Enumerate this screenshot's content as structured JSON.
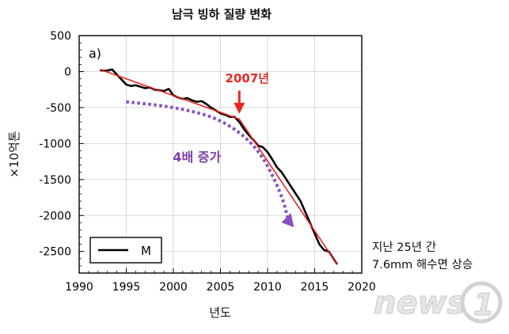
{
  "chart_data": {
    "type": "line",
    "title": "남극 빙하 질량 변화",
    "panel_label": "a)",
    "xlabel": "년도",
    "ylabel": "×10억톤",
    "xlim": [
      1990,
      2020
    ],
    "ylim": [
      -2800,
      500
    ],
    "x_ticks": [
      1990,
      1995,
      2000,
      2005,
      2010,
      2015,
      2020
    ],
    "y_ticks": [
      500,
      0,
      -500,
      -1000,
      -1500,
      -2000,
      -2500
    ],
    "grid": true,
    "legend": {
      "position": "bottom-left",
      "entries": [
        "M"
      ]
    },
    "series": [
      {
        "name": "M",
        "color": "#000000",
        "x": [
          1992.2,
          1992.8,
          1993.5,
          1994.0,
          1994.5,
          1995.0,
          1995.5,
          1996.0,
          1996.5,
          1997.0,
          1997.5,
          1998.0,
          1998.5,
          1999.0,
          1999.5,
          2000.0,
          2000.5,
          2001.0,
          2001.5,
          2002.0,
          2002.5,
          2003.0,
          2003.5,
          2004.0,
          2004.5,
          2005.0,
          2005.5,
          2006.0,
          2006.5,
          2007.0,
          2007.5,
          2008.0,
          2008.5,
          2009.0,
          2009.5,
          2010.0,
          2010.5,
          2011.0,
          2011.5,
          2012.0,
          2012.5,
          2013.0,
          2013.5,
          2014.0,
          2014.5,
          2015.0,
          2015.5,
          2016.0,
          2016.5,
          2017.0,
          2017.4
        ],
        "y": [
          20,
          10,
          30,
          -40,
          -110,
          -180,
          -200,
          -190,
          -210,
          -230,
          -220,
          -250,
          -260,
          -270,
          -240,
          -330,
          -360,
          -380,
          -370,
          -400,
          -420,
          -410,
          -450,
          -500,
          -540,
          -580,
          -600,
          -630,
          -630,
          -700,
          -800,
          -880,
          -950,
          -1030,
          -1050,
          -1120,
          -1220,
          -1330,
          -1400,
          -1500,
          -1600,
          -1700,
          -1800,
          -1950,
          -2100,
          -2250,
          -2400,
          -2480,
          -2500,
          -2600,
          -2680
        ]
      },
      {
        "name": "",
        "color": "#e8281e",
        "x": [
          1992.2,
          2007.0,
          2017.4
        ],
        "y": [
          30,
          -660,
          -2680
        ]
      }
    ],
    "annotations": [
      {
        "text": "2007년",
        "color": "#e8281e",
        "x": 2007.0,
        "y": -500
      },
      {
        "text": "4배 증가",
        "color": "#7b3fa6",
        "x": 2002.5,
        "y": -1250
      }
    ],
    "trend_arrow": {
      "color": "#8a4fc0",
      "points": [
        [
          1995,
          -420
        ],
        [
          2000,
          -490
        ],
        [
          2005,
          -650
        ],
        [
          2009,
          -1050
        ],
        [
          2011.5,
          -1700
        ],
        [
          2012.3,
          -2120
        ]
      ]
    }
  },
  "side_note": {
    "line1": "지난 25년 간",
    "line2": "7.6mm 해수면 상승"
  },
  "watermark": {
    "text": "news1"
  }
}
